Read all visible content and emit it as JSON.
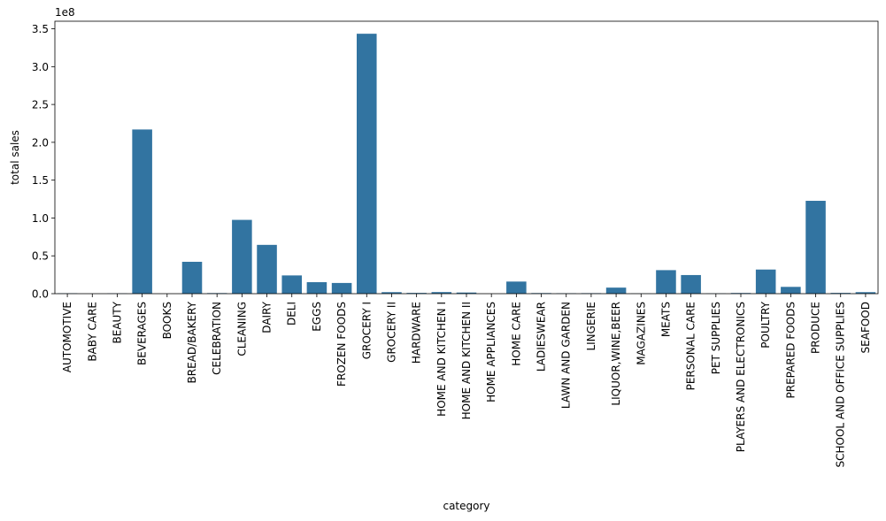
{
  "chart_data": {
    "type": "bar",
    "xlabel": "category",
    "ylabel": "total sales",
    "y_offset_label": "1e8",
    "ylim": [
      0,
      360000000
    ],
    "yticks": [
      0,
      50000000,
      100000000,
      150000000,
      200000000,
      250000000,
      300000000,
      350000000
    ],
    "ytick_labels": [
      "0.0",
      "0.5",
      "1.0",
      "1.5",
      "2.0",
      "2.5",
      "3.0",
      "3.5"
    ],
    "bar_color": "#3274a1",
    "grid": false,
    "categories": [
      "AUTOMOTIVE",
      "BABY CARE",
      "BEAUTY",
      "BEVERAGES",
      "BOOKS",
      "BREAD/BAKERY",
      "CELEBRATION",
      "CLEANING",
      "DAIRY",
      "DELI",
      "EGGS",
      "FROZEN FOODS",
      "GROCERY I",
      "GROCERY II",
      "HARDWARE",
      "HOME AND KITCHEN I",
      "HOME AND KITCHEN II",
      "HOME APPLIANCES",
      "HOME CARE",
      "LADIESWEAR",
      "LAWN AND GARDEN",
      "LINGERIE",
      "LIQUOR,WINE,BEER",
      "MAGAZINES",
      "MEATS",
      "PERSONAL CARE",
      "PET SUPPLIES",
      "PLAYERS AND ELECTRONICS",
      "POULTRY",
      "PREPARED FOODS",
      "PRODUCE",
      "SCHOOL AND OFFICE SUPPLIES",
      "SEAFOOD"
    ],
    "values": [
      550000,
      10000,
      340000,
      216950000,
      6000,
      42130000,
      760000,
      97520000,
      64490000,
      24110000,
      15180000,
      14140000,
      343460000,
      2000000,
      1000000,
      2100000,
      1500000,
      40000,
      16000000,
      800000,
      550000,
      650000,
      8000000,
      250000,
      31090000,
      24600000,
      310000,
      890000,
      31880000,
      8990000,
      122700000,
      1000000,
      2000000
    ]
  }
}
